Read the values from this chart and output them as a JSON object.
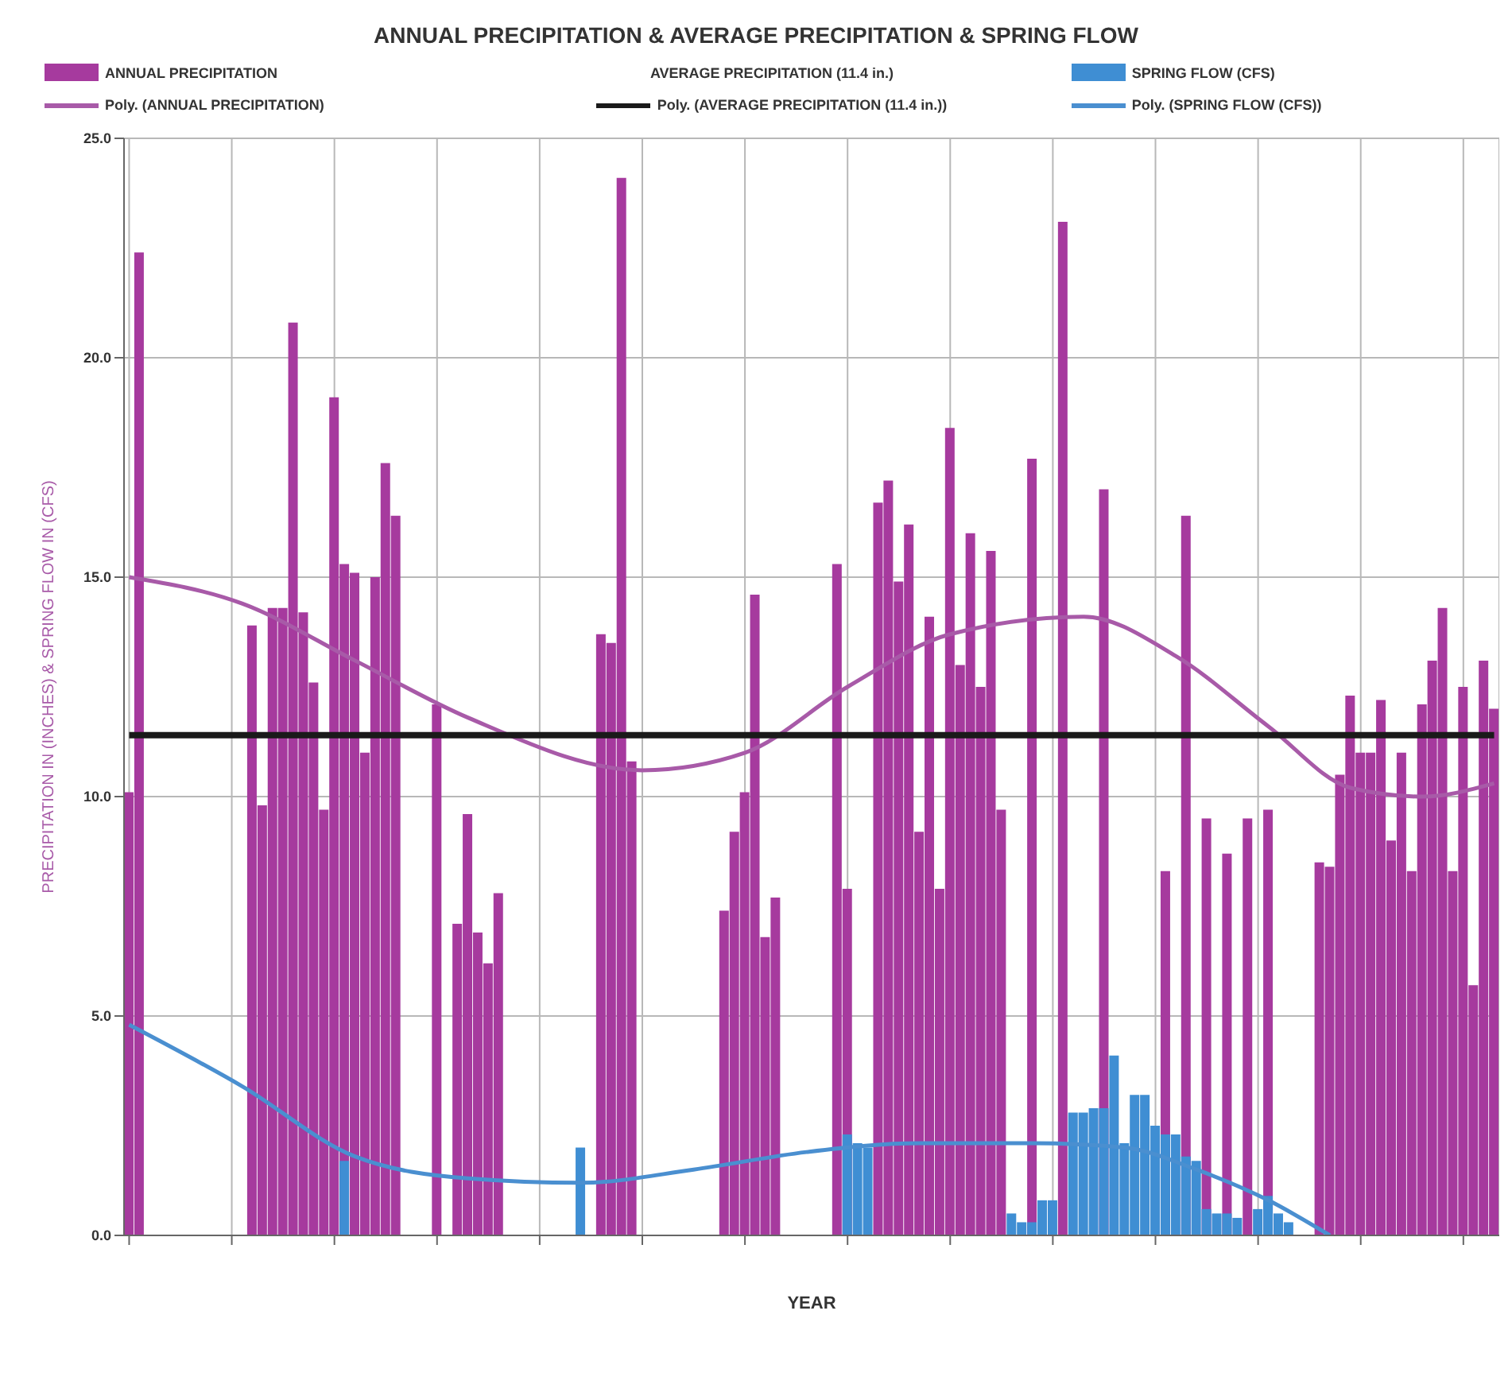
{
  "chart_data": {
    "type": "bar",
    "title": "ANNUAL PRECIPITATION & AVERAGE PRECIPITATION & SPRING FLOW",
    "xlabel": "YEAR",
    "ylabel": "PRECIPITATION IN (INCHES) & SPRING FLOW IN (CFS)",
    "annotations": [
      "AVERAGE PRECIPITATION (11.4 in.)"
    ],
    "categories": [
      null,
      null,
      null,
      null,
      null,
      null,
      null,
      null,
      null,
      null,
      null,
      null,
      null,
      null,
      null,
      null,
      null,
      null,
      null,
      null,
      null,
      null,
      null,
      null,
      null,
      null,
      null,
      null,
      null,
      null,
      null,
      null,
      null,
      null,
      null,
      null,
      null,
      null,
      null,
      null,
      null,
      null,
      null,
      null,
      null,
      null,
      null,
      null,
      null,
      null,
      null,
      null,
      null,
      null,
      null,
      null,
      null,
      null,
      null,
      null,
      null,
      null,
      null,
      null,
      null,
      null,
      null,
      null,
      null,
      null,
      null,
      null,
      null,
      null,
      null,
      null,
      null,
      null,
      null,
      null,
      null,
      null,
      null,
      null,
      null,
      null,
      null,
      null,
      null,
      null,
      null,
      null,
      null,
      null,
      null,
      null,
      null,
      null,
      null,
      null,
      null,
      null,
      null,
      null,
      null,
      null,
      null,
      null,
      null,
      null,
      null,
      null,
      null,
      null,
      null,
      null,
      null,
      null,
      null,
      null,
      null,
      null,
      null,
      null,
      null,
      null,
      null,
      null,
      null,
      null,
      null,
      null,
      null,
      null
    ],
    "series": [
      {
        "name": "ANNUAL PRECIPITATION",
        "color": "#a63a9e",
        "values": [
          10.1,
          22.4,
          null,
          null,
          null,
          null,
          null,
          null,
          null,
          null,
          null,
          null,
          13.9,
          9.8,
          14.3,
          14.3,
          20.8,
          14.2,
          12.6,
          9.7,
          19.1,
          15.3,
          15.1,
          11.0,
          15.0,
          17.6,
          16.4,
          null,
          null,
          null,
          12.1,
          null,
          7.1,
          9.6,
          6.9,
          6.2,
          7.8,
          null,
          null,
          null,
          null,
          null,
          null,
          null,
          null,
          null,
          13.7,
          13.5,
          24.1,
          10.8,
          null,
          null,
          null,
          null,
          null,
          null,
          null,
          null,
          7.4,
          9.2,
          10.1,
          14.6,
          6.8,
          7.7,
          null,
          null,
          null,
          null,
          null,
          15.3,
          7.9,
          null,
          null,
          16.7,
          17.2,
          14.9,
          16.2,
          9.2,
          14.1,
          7.9,
          18.4,
          13.0,
          16.0,
          12.5,
          15.6,
          9.7,
          null,
          null,
          17.7,
          null,
          null,
          23.1,
          null,
          null,
          null,
          17.0,
          null,
          null,
          null,
          null,
          null,
          8.3,
          null,
          16.4,
          null,
          9.5,
          null,
          8.7,
          null,
          9.5,
          null,
          9.7,
          null,
          null,
          null,
          null,
          8.5,
          8.4,
          10.5,
          12.3,
          11.0,
          11.0,
          12.2,
          9.0,
          11.0,
          8.3,
          12.1,
          13.1,
          14.3,
          8.3,
          12.5,
          5.7,
          13.1,
          12.0
        ]
      },
      {
        "name": "SPRING FLOW (CFS)",
        "color": "#3f8ed3",
        "values": [
          null,
          null,
          null,
          null,
          null,
          null,
          null,
          null,
          null,
          null,
          null,
          null,
          null,
          null,
          null,
          null,
          null,
          null,
          null,
          null,
          null,
          1.7,
          null,
          null,
          null,
          null,
          null,
          null,
          null,
          null,
          null,
          null,
          null,
          null,
          null,
          null,
          null,
          null,
          null,
          null,
          null,
          null,
          null,
          null,
          2.0,
          null,
          null,
          null,
          null,
          null,
          null,
          null,
          null,
          null,
          null,
          null,
          null,
          null,
          null,
          null,
          null,
          null,
          null,
          null,
          null,
          null,
          null,
          null,
          null,
          null,
          2.3,
          2.1,
          2.0,
          null,
          null,
          null,
          null,
          null,
          null,
          null,
          null,
          null,
          null,
          null,
          null,
          null,
          0.5,
          0.3,
          0.3,
          0.8,
          0.8,
          null,
          2.8,
          2.8,
          2.9,
          2.9,
          4.1,
          2.1,
          3.2,
          3.2,
          2.5,
          2.3,
          2.3,
          1.8,
          1.7,
          0.6,
          0.5,
          0.5,
          0.4,
          null,
          0.6,
          0.9,
          0.5,
          0.3,
          null,
          null,
          null,
          null,
          null,
          null,
          null,
          null,
          null,
          null,
          null,
          null,
          null,
          null,
          null,
          null,
          null,
          null,
          null,
          null
        ]
      },
      {
        "name": "Poly. (ANNUAL PRECIPITATION)",
        "type": "line",
        "color": "#a85aa8",
        "values": [
          15.0,
          null,
          null,
          null,
          null,
          null,
          null,
          null,
          null,
          null,
          null,
          14.4,
          null,
          null,
          null,
          null,
          null,
          null,
          null,
          null,
          null,
          null,
          13.1,
          null,
          null,
          null,
          null,
          null,
          null,
          null,
          null,
          null,
          null,
          11.8,
          null,
          null,
          null,
          null,
          null,
          null,
          null,
          null,
          null,
          null,
          null,
          null,
          null,
          null,
          null,
          null,
          10.6,
          null,
          null,
          null,
          null,
          null,
          null,
          null,
          null,
          null,
          11.0,
          null,
          null,
          null,
          null,
          null,
          null,
          null,
          null,
          null,
          12.5,
          null,
          null,
          null,
          null,
          null,
          null,
          null,
          null,
          null,
          13.7,
          null,
          null,
          null,
          null,
          null,
          null,
          null,
          null,
          null,
          null,
          null,
          null,
          14.1,
          null,
          null,
          null,
          null,
          null,
          null,
          null,
          null,
          13.2,
          null,
          null,
          null,
          null,
          null,
          null,
          null,
          null,
          11.6,
          null,
          null,
          null,
          null,
          null,
          null,
          null,
          10.2,
          null,
          null,
          null,
          null,
          null,
          null,
          10.0,
          null,
          null,
          null,
          null,
          null,
          null,
          10.3
        ]
      },
      {
        "name": "Poly. (AVERAGE PRECIPITATION (11.4 in.))",
        "type": "line",
        "color": "#1a1a1a",
        "values": [
          11.4,
          null,
          null,
          null,
          null,
          null,
          null,
          null,
          null,
          null,
          null,
          null,
          null,
          null,
          null,
          null,
          null,
          null,
          null,
          null,
          null,
          null,
          null,
          null,
          null,
          null,
          null,
          null,
          null,
          null,
          null,
          null,
          null,
          null,
          null,
          null,
          null,
          null,
          null,
          null,
          null,
          null,
          null,
          null,
          null,
          null,
          null,
          null,
          null,
          null,
          null,
          null,
          null,
          null,
          null,
          null,
          null,
          null,
          null,
          null,
          null,
          null,
          null,
          null,
          null,
          null,
          null,
          null,
          null,
          null,
          null,
          null,
          null,
          null,
          null,
          null,
          null,
          null,
          null,
          null,
          null,
          null,
          null,
          null,
          null,
          null,
          null,
          null,
          null,
          null,
          null,
          null,
          null,
          null,
          null,
          null,
          null,
          null,
          null,
          null,
          null,
          null,
          null,
          null,
          null,
          null,
          null,
          null,
          null,
          null,
          null,
          null,
          null,
          null,
          null,
          null,
          null,
          null,
          null,
          null,
          null,
          null,
          null,
          null,
          null,
          null,
          null,
          null,
          null,
          null,
          null,
          null,
          null,
          11.4
        ]
      },
      {
        "name": "Poly. (SPRING FLOW (CFS))",
        "type": "line",
        "color": "#4a8fd0",
        "values": [
          4.8,
          null,
          null,
          null,
          null,
          null,
          null,
          null,
          null,
          null,
          null,
          3.4,
          null,
          null,
          null,
          null,
          null,
          null,
          null,
          null,
          null,
          null,
          1.8,
          null,
          null,
          null,
          null,
          null,
          null,
          null,
          null,
          null,
          null,
          1.3,
          null,
          null,
          null,
          null,
          null,
          null,
          null,
          null,
          null,
          null,
          1.2,
          null,
          null,
          null,
          null,
          null,
          null,
          null,
          null,
          null,
          null,
          1.5,
          null,
          null,
          null,
          null,
          null,
          null,
          null,
          null,
          null,
          null,
          1.9,
          null,
          null,
          null,
          null,
          null,
          null,
          null,
          null,
          null,
          null,
          2.1,
          null,
          null,
          null,
          null,
          null,
          null,
          null,
          null,
          null,
          null,
          2.1,
          null,
          null,
          null,
          null,
          null,
          null,
          null,
          null,
          2.0,
          null,
          null,
          null,
          null,
          null,
          null,
          1.5,
          null,
          null,
          null,
          null,
          null,
          null,
          0.8,
          null,
          null,
          null,
          null,
          null,
          0.0,
          null,
          null,
          null,
          null,
          null,
          null,
          null,
          null,
          null,
          null,
          null,
          null,
          null,
          null,
          null,
          null
        ]
      }
    ],
    "ylim": [
      0,
      25
    ],
    "yticks": [
      {
        "value": 0,
        "label": "0.0"
      },
      {
        "value": 5,
        "label": "5.0"
      },
      {
        "value": 10,
        "label": "10.0"
      },
      {
        "value": 15,
        "label": "15.0"
      },
      {
        "value": 20,
        "label": "20.0"
      },
      {
        "value": 25,
        "label": "25.0"
      }
    ],
    "grid": true,
    "legend": "top"
  }
}
